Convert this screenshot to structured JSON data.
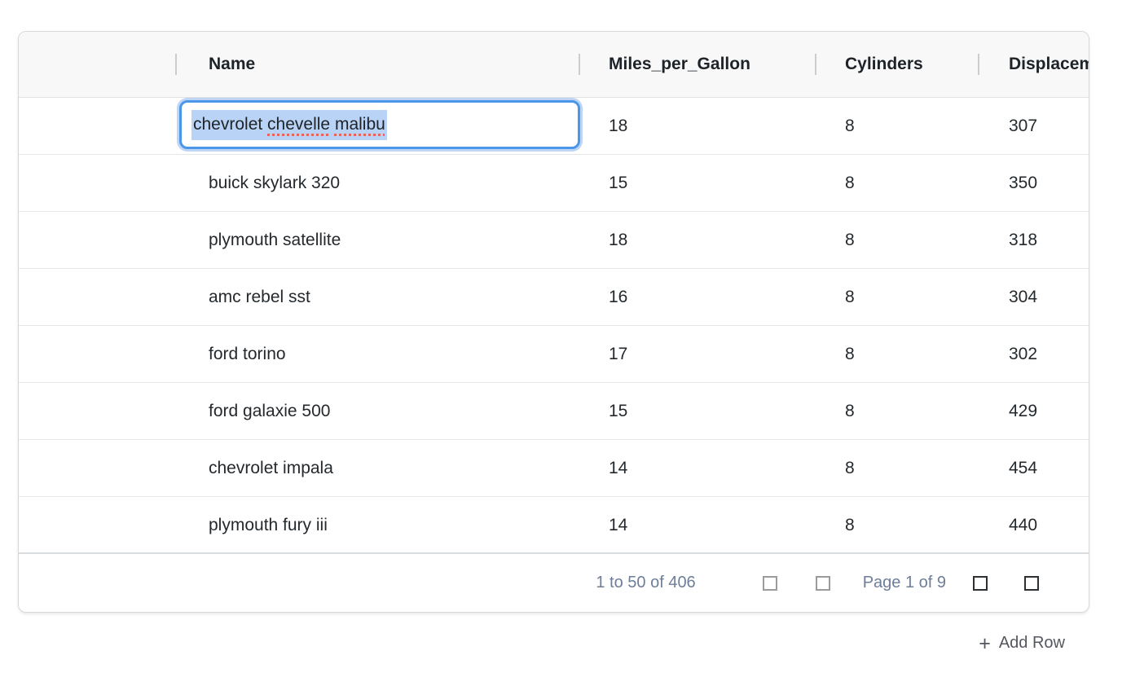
{
  "grid": {
    "header": {
      "name": "Name",
      "mpg": "Miles_per_Gallon",
      "cyl": "Cylinders",
      "disp": "Displacement"
    },
    "rows": [
      {
        "name": "chevrolet chevelle malibu",
        "mpg": "18",
        "cyl": "8",
        "disp": "307"
      },
      {
        "name": "buick skylark 320",
        "mpg": "15",
        "cyl": "8",
        "disp": "350"
      },
      {
        "name": "plymouth satellite",
        "mpg": "18",
        "cyl": "8",
        "disp": "318"
      },
      {
        "name": "amc rebel sst",
        "mpg": "16",
        "cyl": "8",
        "disp": "304"
      },
      {
        "name": "ford torino",
        "mpg": "17",
        "cyl": "8",
        "disp": "302"
      },
      {
        "name": "ford galaxie 500",
        "mpg": "15",
        "cyl": "8",
        "disp": "429"
      },
      {
        "name": "chevrolet impala",
        "mpg": "14",
        "cyl": "8",
        "disp": "454"
      },
      {
        "name": "plymouth fury iii",
        "mpg": "14",
        "cyl": "8",
        "disp": "440"
      }
    ],
    "editor": {
      "value": "chevrolet chevelle malibu",
      "segment_plain": "chevrolet ",
      "misspelled_word_1": "chevelle",
      "separator": " ",
      "misspelled_word_2": "malibu"
    },
    "footer": {
      "range_summary": "1 to 50 of 406",
      "page_status": "Page 1 of 9",
      "pager_buttons": [
        "first-page",
        "previous-page",
        "next-page",
        "last-page"
      ]
    }
  },
  "actions": {
    "add_row_plus": "+",
    "add_row_label": "Add Row"
  },
  "colors": {
    "focus_ring": "#4A96E8",
    "text_selection": "#B9D3F6",
    "spellcheck_underline": "#E8635A",
    "footer_text": "#6E7E99",
    "header_background": "#F8F8F8",
    "row_border": "#E7E7E7",
    "panel_border": "#D6D8DA",
    "disabled_pager_icon": "#9B9B9B",
    "active_pager_icon": "#2C3136",
    "cell_text": "#24292D",
    "add_row_text": "#54585E"
  }
}
